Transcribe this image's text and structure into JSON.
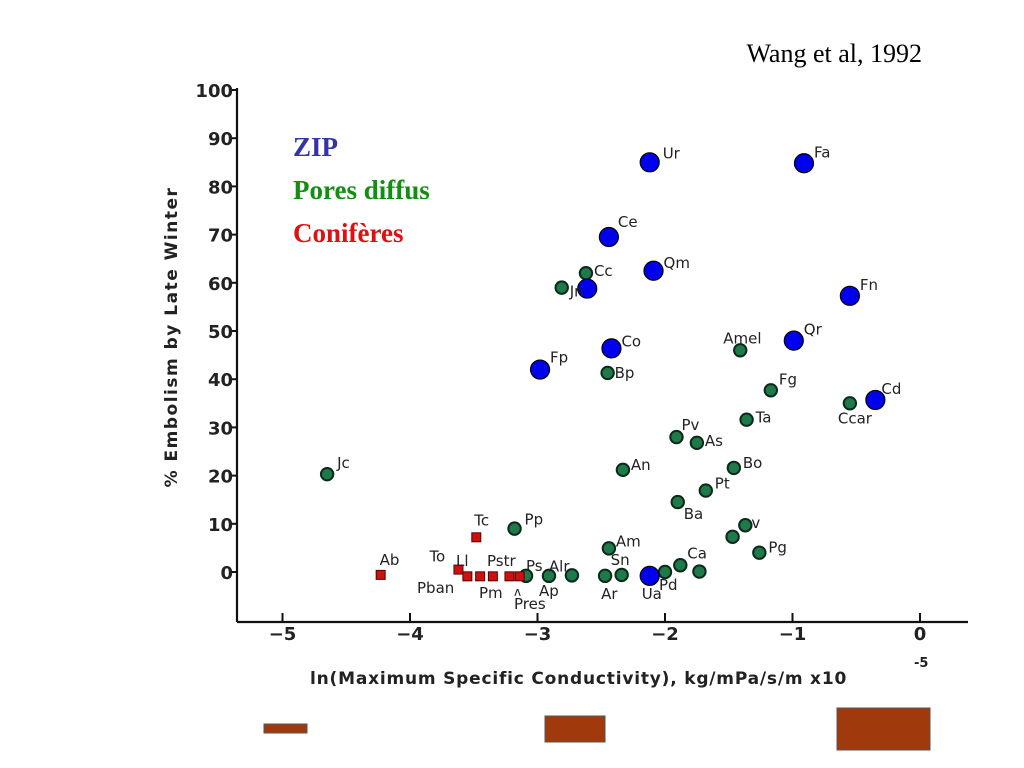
{
  "citation": "Wang et al, 1992",
  "colors": {
    "zip": "#0000ee",
    "diffuse": "#1f7a4a",
    "conifer": "#cc1111",
    "legend_zip": "#3333aa",
    "legend_diffuse": "#109010",
    "legend_conifer": "#dd1111",
    "bars": "#a0390c"
  },
  "legend": [
    {
      "label": "ZIP",
      "group": "zip"
    },
    {
      "label": "Pores diffus",
      "group": "diffuse"
    },
    {
      "label": "Conifères",
      "group": "conifer"
    }
  ],
  "chart_data": {
    "type": "scatter",
    "xlabel": "ln(Maximum Specific Conductivity), kg/mPa/s/m x10",
    "xlabel_exponent": "-5",
    "ylabel": "% Embolism by Late Winter",
    "xlim": [
      -5.3,
      0.35
    ],
    "ylim": [
      -10,
      100
    ],
    "x_ticks": [
      -5,
      -4,
      -3,
      -2,
      -1,
      0
    ],
    "x_tick_labels": [
      "−5",
      "−4",
      "−3",
      "−2",
      "−1",
      "0"
    ],
    "y_ticks": [
      0,
      10,
      20,
      30,
      40,
      50,
      60,
      70,
      80,
      90,
      100
    ],
    "y_tick_labels": [
      "0",
      "10",
      "20",
      "30",
      "40",
      "50",
      "60",
      "70",
      "80",
      "90",
      "100"
    ],
    "grid": false,
    "legend_position": "top-left",
    "series": [
      {
        "name": "ZIP",
        "group": "zip",
        "points": [
          {
            "label": "Ur",
            "x": -2.12,
            "y": 85.0
          },
          {
            "label": "Fa",
            "x": -0.91,
            "y": 84.8
          },
          {
            "label": "Ce",
            "x": -2.44,
            "y": 69.5
          },
          {
            "label": "Qm",
            "x": -2.09,
            "y": 62.5
          },
          {
            "label": "Cc",
            "x": -2.61,
            "y": 58.8
          },
          {
            "label": "Fn",
            "x": -0.55,
            "y": 57.3
          },
          {
            "label": "Qr",
            "x": -0.99,
            "y": 48.0
          },
          {
            "label": "Co",
            "x": -2.42,
            "y": 46.4
          },
          {
            "label": "Fp",
            "x": -2.98,
            "y": 42.0
          },
          {
            "label": "Cd",
            "x": -0.35,
            "y": 35.7
          },
          {
            "label": "Ua",
            "x": -2.12,
            "y": -0.8
          }
        ]
      },
      {
        "name": "Pores diffus",
        "group": "diffuse",
        "points": [
          {
            "label": "Cc",
            "x": -2.62,
            "y": 62.0
          },
          {
            "label": "Jn",
            "x": -2.81,
            "y": 59.0
          },
          {
            "label": "Amel",
            "x": -1.41,
            "y": 46.0
          },
          {
            "label": "Bp",
            "x": -2.45,
            "y": 41.3
          },
          {
            "label": "Fg",
            "x": -1.17,
            "y": 37.7
          },
          {
            "label": "Ccar",
            "x": -0.55,
            "y": 35.0
          },
          {
            "label": "Ta",
            "x": -1.36,
            "y": 31.6
          },
          {
            "label": "Pv",
            "x": -1.91,
            "y": 28.0
          },
          {
            "label": "As",
            "x": -1.75,
            "y": 26.8
          },
          {
            "label": "Jc",
            "x": -4.65,
            "y": 20.3
          },
          {
            "label": "An",
            "x": -2.33,
            "y": 21.2
          },
          {
            "label": "Bo",
            "x": -1.46,
            "y": 21.6
          },
          {
            "label": "Pt",
            "x": -1.68,
            "y": 16.9
          },
          {
            "label": "Ba",
            "x": -1.9,
            "y": 14.5
          },
          {
            "label": "Pp",
            "x": -3.18,
            "y": 9.0
          },
          {
            "label": "v",
            "x": -1.37,
            "y": 9.7
          },
          {
            "label": "",
            "x": -1.47,
            "y": 7.3
          },
          {
            "label": "Pg",
            "x": -1.26,
            "y": 4.0
          },
          {
            "label": "Am",
            "x": -2.44,
            "y": 4.9
          },
          {
            "label": "Ca",
            "x": -1.88,
            "y": 1.4
          },
          {
            "label": "",
            "x": -1.73,
            "y": 0.1
          },
          {
            "label": "Pd",
            "x": -2.0,
            "y": 0.0
          },
          {
            "label": "Sn",
            "x": -2.34,
            "y": -0.6
          },
          {
            "label": "Ar",
            "x": -2.47,
            "y": -0.8
          },
          {
            "label": "Alr",
            "x": -2.73,
            "y": -0.7
          },
          {
            "label": "Ap",
            "x": -2.91,
            "y": -0.8
          },
          {
            "label": "Ps",
            "x": -3.09,
            "y": -0.8
          }
        ]
      },
      {
        "name": "Conifères",
        "group": "conifer",
        "points": [
          {
            "label": "Tc",
            "x": -3.48,
            "y": 7.2
          },
          {
            "label": "Ab",
            "x": -4.23,
            "y": -0.6
          },
          {
            "label": "To",
            "x": -3.62,
            "y": 0.5
          },
          {
            "label": "",
            "x": -3.55,
            "y": -0.9
          },
          {
            "label": "",
            "x": -3.45,
            "y": -0.9
          },
          {
            "label": "",
            "x": -3.35,
            "y": -0.9
          },
          {
            "label": "",
            "x": -3.22,
            "y": -0.9
          },
          {
            "label": "",
            "x": -3.14,
            "y": -0.9
          }
        ]
      }
    ],
    "annotations": [
      "Pban",
      "Pm",
      "Pres",
      "Ll",
      "Pstr"
    ]
  },
  "footer_bars": [
    {
      "name": "small-bar"
    },
    {
      "name": "medium-bar"
    },
    {
      "name": "large-bar"
    }
  ]
}
